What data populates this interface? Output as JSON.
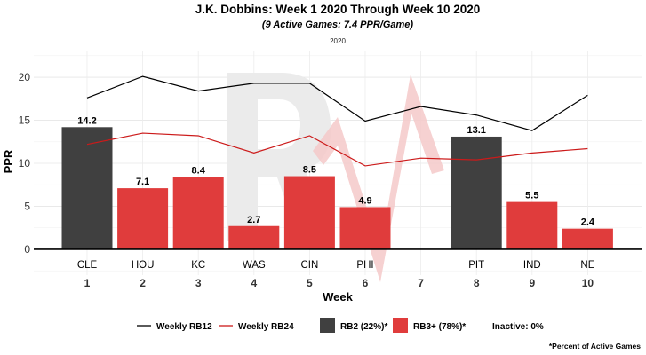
{
  "chart_data": {
    "type": "bar",
    "title": "J.K. Dobbins: Week 1 2020 Through Week 10 2020",
    "subtitle": "(9 Active Games: 7.4 PPR/Game)",
    "facet_label": "2020",
    "xlabel": "Week",
    "ylabel": "PPR",
    "ylim": [
      -3,
      23
    ],
    "yticks": [
      0,
      5,
      10,
      15,
      20
    ],
    "weeks": [
      1,
      2,
      3,
      4,
      5,
      6,
      7,
      8,
      9,
      10
    ],
    "opponents": [
      "CLE",
      "HOU",
      "KC",
      "WAS",
      "CIN",
      "PHI",
      "",
      "PIT",
      "IND",
      "NE"
    ],
    "bars": [
      {
        "week": 1,
        "value": 14.2,
        "label": "14.2",
        "tier": "RB2"
      },
      {
        "week": 2,
        "value": 7.1,
        "label": "7.1",
        "tier": "RB3+"
      },
      {
        "week": 3,
        "value": 8.4,
        "label": "8.4",
        "tier": "RB3+"
      },
      {
        "week": 4,
        "value": 2.7,
        "label": "2.7",
        "tier": "RB3+"
      },
      {
        "week": 5,
        "value": 8.5,
        "label": "8.5",
        "tier": "RB3+"
      },
      {
        "week": 6,
        "value": 4.9,
        "label": "4.9",
        "tier": "RB3+"
      },
      {
        "week": 8,
        "value": 13.1,
        "label": "13.1",
        "tier": "RB2"
      },
      {
        "week": 9,
        "value": 5.5,
        "label": "5.5",
        "tier": "RB3+"
      },
      {
        "week": 10,
        "value": 2.4,
        "label": "2.4",
        "tier": "RB3+"
      }
    ],
    "series": [
      {
        "name": "Weekly RB12",
        "color": "#000000",
        "values": [
          17.6,
          20.1,
          18.4,
          19.3,
          19.3,
          14.9,
          16.6,
          15.6,
          13.8,
          17.9
        ]
      },
      {
        "name": "Weekly RB24",
        "color": "#cc1a1a",
        "values": [
          12.2,
          13.5,
          13.2,
          11.2,
          13.2,
          9.7,
          10.6,
          10.4,
          11.2,
          11.7
        ]
      }
    ],
    "tier_colors": {
      "RB2": "#404040",
      "RB3+": "#e03c3c"
    },
    "legend": {
      "placement": "bottom",
      "lines": [
        "Weekly RB12",
        "Weekly RB24"
      ],
      "boxes": [
        {
          "label": "RB2 (22%)*",
          "color": "#404040"
        },
        {
          "label": "RB3+ (78%)*",
          "color": "#e03c3c"
        }
      ],
      "inactive": "Inactive: 0%"
    },
    "caption": "*Percent of Active Games",
    "grid": true
  }
}
